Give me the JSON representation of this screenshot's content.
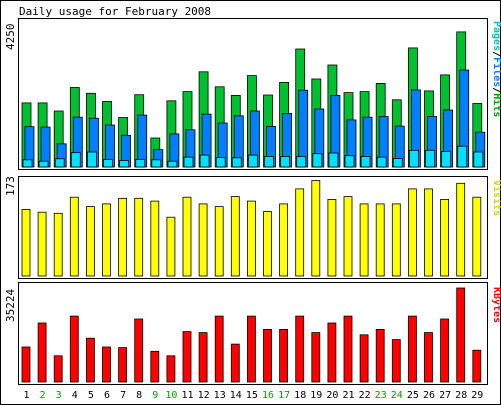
{
  "title": "Daily usage for February 2008",
  "colors": {
    "hits": "#00c030",
    "files": "#0080ff",
    "pages": "#00e0ff",
    "visits": "#ffff00",
    "kbytes": "#ff0000",
    "weekday_label": "#000000",
    "weekend_label": "#00a000",
    "visits_label": "#d8d800",
    "kbytes_label": "#ff0000",
    "pages_label": "#00c0c0",
    "files_label": "#0080ff",
    "hits_label": "#00a000"
  },
  "chart_data": [
    {
      "type": "bar",
      "name": "pages-files-hits",
      "legend": {
        "pages": "Pages",
        "sep1": "/",
        "files": "Files",
        "sep2": "/",
        "hits": "Hits"
      },
      "ymax_label": "4250",
      "ylim": [
        0,
        4250
      ],
      "categories": [
        "1",
        "2",
        "3",
        "4",
        "5",
        "6",
        "7",
        "8",
        "9",
        "10",
        "11",
        "12",
        "13",
        "14",
        "15",
        "16",
        "17",
        "18",
        "19",
        "20",
        "21",
        "22",
        "23",
        "24",
        "25",
        "26",
        "27",
        "28",
        "29"
      ],
      "weekend_days": [
        "2",
        "3",
        "9",
        "10",
        "16",
        "17",
        "23",
        "24"
      ],
      "series": [
        {
          "key": "hits",
          "values": [
            1880,
            1880,
            1640,
            2330,
            2160,
            1920,
            1450,
            2120,
            850,
            1940,
            2210,
            2790,
            2350,
            2100,
            2680,
            2110,
            2480,
            3460,
            2580,
            2990,
            2180,
            2210,
            2450,
            1970,
            3490,
            2230,
            2700,
            3960,
            1860
          ]
        },
        {
          "key": "files",
          "values": [
            1180,
            1170,
            680,
            1460,
            1430,
            1230,
            930,
            1520,
            510,
            970,
            1090,
            1550,
            1290,
            1500,
            1640,
            1190,
            1570,
            2250,
            1700,
            2100,
            1380,
            1460,
            1480,
            1200,
            2260,
            1480,
            1670,
            2840,
            1020
          ]
        },
        {
          "key": "pages",
          "values": [
            210,
            170,
            240,
            420,
            440,
            220,
            190,
            220,
            210,
            170,
            290,
            350,
            280,
            270,
            350,
            310,
            310,
            310,
            390,
            410,
            330,
            310,
            290,
            250,
            490,
            490,
            450,
            610,
            440
          ]
        }
      ]
    },
    {
      "type": "bar",
      "name": "visits",
      "legend": {
        "visits": "Visits"
      },
      "ymax_label": "173",
      "ylim": [
        0,
        173
      ],
      "series": [
        {
          "key": "visits",
          "values": [
            120,
            115,
            113,
            142,
            125,
            130,
            140,
            140,
            135,
            106,
            142,
            130,
            125,
            143,
            135,
            116,
            130,
            157,
            172,
            138,
            143,
            130,
            130,
            130,
            157,
            157,
            138,
            167,
            142
          ]
        }
      ]
    },
    {
      "type": "bar",
      "name": "kbytes",
      "legend": {
        "kbytes": "KBytes"
      },
      "ymax_label": "35224",
      "ylim": [
        0,
        35224
      ],
      "series": [
        {
          "key": "kbytes",
          "values": [
            13100,
            22100,
            9800,
            24700,
            16400,
            13100,
            12900,
            23600,
            11500,
            9800,
            18900,
            18500,
            24700,
            14200,
            24700,
            19700,
            19700,
            24700,
            18500,
            22100,
            24700,
            17700,
            19700,
            15900,
            24700,
            18500,
            23600,
            35224,
            11900
          ]
        }
      ]
    }
  ]
}
